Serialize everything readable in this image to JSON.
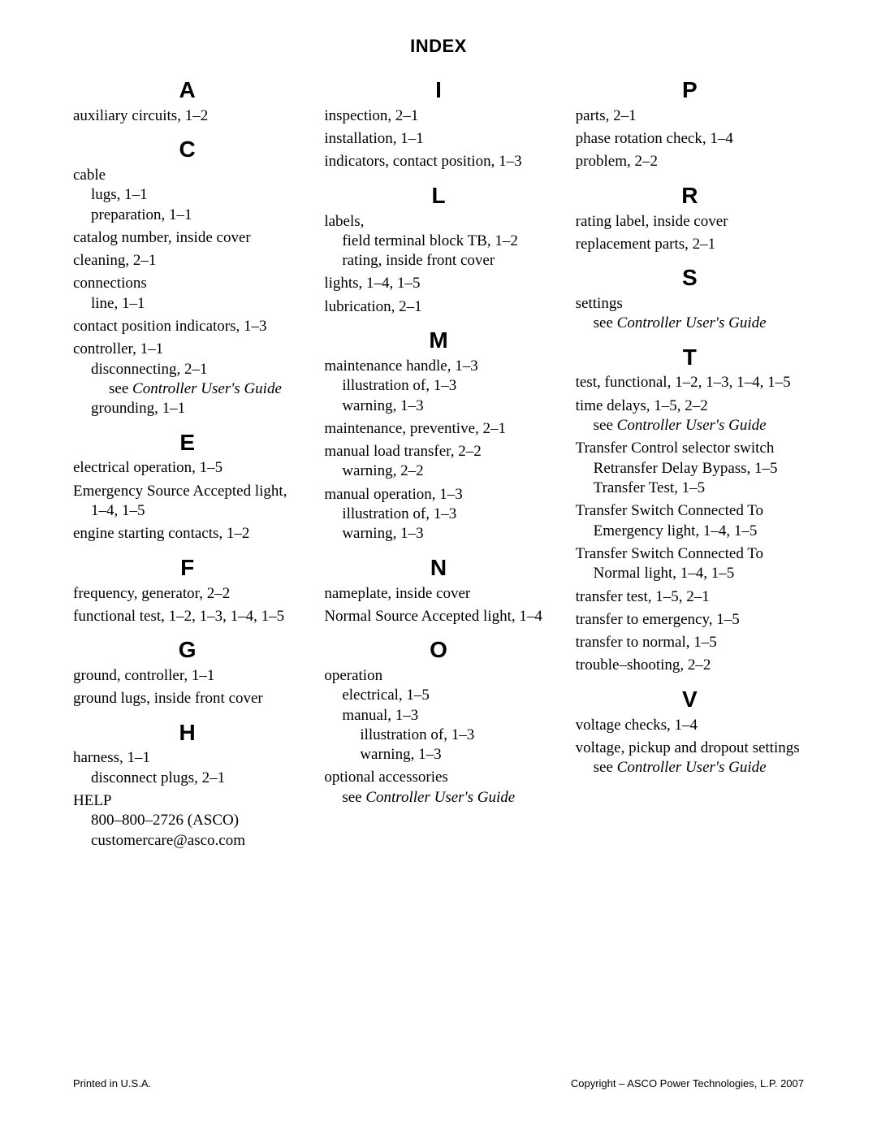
{
  "title": "INDEX",
  "footer_left": "Printed in U.S.A.",
  "footer_right": "Copyright – ASCO Power Technologies, L.P. 2007",
  "columns": [
    {
      "sections": [
        {
          "letter": "A",
          "entries": [
            {
              "lines": [
                {
                  "lvl": 0,
                  "text": "auxiliary circuits, 1–2"
                }
              ]
            }
          ]
        },
        {
          "letter": "C",
          "entries": [
            {
              "lines": [
                {
                  "lvl": 0,
                  "text": "cable"
                },
                {
                  "lvl": 1,
                  "text": "lugs, 1–1"
                },
                {
                  "lvl": 1,
                  "text": "preparation, 1–1"
                }
              ]
            },
            {
              "lines": [
                {
                  "lvl": 0,
                  "text": "catalog number, inside cover"
                }
              ]
            },
            {
              "lines": [
                {
                  "lvl": 0,
                  "text": "cleaning, 2–1"
                }
              ]
            },
            {
              "lines": [
                {
                  "lvl": 0,
                  "text": "connections"
                },
                {
                  "lvl": 1,
                  "text": "line, 1–1"
                }
              ]
            },
            {
              "lines": [
                {
                  "lvl": 0,
                  "text": "contact position indicators, 1–3"
                }
              ]
            },
            {
              "lines": [
                {
                  "lvl": 0,
                  "text": "controller, 1–1"
                },
                {
                  "lvl": 1,
                  "text": "disconnecting, 2–1"
                },
                {
                  "lvl": 2,
                  "text": "see ",
                  "see": "Controller User's Guide"
                },
                {
                  "lvl": 1,
                  "text": "grounding, 1–1"
                }
              ]
            }
          ]
        },
        {
          "letter": "E",
          "entries": [
            {
              "lines": [
                {
                  "lvl": 0,
                  "text": "electrical operation, 1–5"
                }
              ]
            },
            {
              "lines": [
                {
                  "lvl": 0,
                  "text": "Emergency Source Accepted light,"
                },
                {
                  "lvl": 1,
                  "text": "1–4, 1–5"
                }
              ]
            },
            {
              "lines": [
                {
                  "lvl": 0,
                  "text": "engine starting contacts, 1–2"
                }
              ]
            }
          ]
        },
        {
          "letter": "F",
          "entries": [
            {
              "lines": [
                {
                  "lvl": 0,
                  "text": "frequency, generator, 2–2"
                }
              ]
            },
            {
              "lines": [
                {
                  "lvl": 0,
                  "text": "functional test, 1–2, 1–3, 1–4, 1–5"
                }
              ]
            }
          ]
        },
        {
          "letter": "G",
          "entries": [
            {
              "lines": [
                {
                  "lvl": 0,
                  "text": "ground, controller, 1–1"
                }
              ]
            },
            {
              "lines": [
                {
                  "lvl": 0,
                  "text": "ground lugs, inside front cover"
                }
              ]
            }
          ]
        },
        {
          "letter": "H",
          "entries": [
            {
              "lines": [
                {
                  "lvl": 0,
                  "text": "harness, 1–1"
                },
                {
                  "lvl": 1,
                  "text": "disconnect plugs, 2–1"
                }
              ]
            },
            {
              "lines": [
                {
                  "lvl": 0,
                  "text": "HELP"
                },
                {
                  "lvl": 1,
                  "text": "800–800–2726 (ASCO)"
                },
                {
                  "lvl": 1,
                  "text": "customercare@asco.com"
                }
              ]
            }
          ]
        }
      ]
    },
    {
      "sections": [
        {
          "letter": "I",
          "entries": [
            {
              "lines": [
                {
                  "lvl": 0,
                  "text": "inspection, 2–1"
                }
              ]
            },
            {
              "lines": [
                {
                  "lvl": 0,
                  "text": "installation, 1–1"
                }
              ]
            },
            {
              "lines": [
                {
                  "lvl": 0,
                  "text": "indicators, contact position, 1–3"
                }
              ]
            }
          ]
        },
        {
          "letter": "L",
          "entries": [
            {
              "lines": [
                {
                  "lvl": 0,
                  "text": "labels,"
                },
                {
                  "lvl": 1,
                  "text": "field terminal block TB, 1–2"
                },
                {
                  "lvl": 1,
                  "text": "rating, inside front cover"
                }
              ]
            },
            {
              "lines": [
                {
                  "lvl": 0,
                  "text": "lights, 1–4, 1–5"
                }
              ]
            },
            {
              "lines": [
                {
                  "lvl": 0,
                  "text": "lubrication, 2–1"
                }
              ]
            }
          ]
        },
        {
          "letter": "M",
          "entries": [
            {
              "lines": [
                {
                  "lvl": 0,
                  "text": "maintenance handle, 1–3"
                },
                {
                  "lvl": 1,
                  "text": "illustration of, 1–3"
                },
                {
                  "lvl": 1,
                  "text": "warning, 1–3"
                }
              ]
            },
            {
              "lines": [
                {
                  "lvl": 0,
                  "text": "maintenance, preventive, 2–1"
                }
              ]
            },
            {
              "lines": [
                {
                  "lvl": 0,
                  "text": "manual load transfer, 2–2"
                },
                {
                  "lvl": 1,
                  "text": "warning, 2–2"
                }
              ]
            },
            {
              "lines": [
                {
                  "lvl": 0,
                  "text": "manual operation, 1–3"
                },
                {
                  "lvl": 1,
                  "text": "illustration of, 1–3"
                },
                {
                  "lvl": 1,
                  "text": "warning, 1–3"
                }
              ]
            }
          ]
        },
        {
          "letter": "N",
          "entries": [
            {
              "lines": [
                {
                  "lvl": 0,
                  "text": "nameplate, inside cover"
                }
              ]
            },
            {
              "lines": [
                {
                  "lvl": 0,
                  "text": "Normal Source Accepted light, 1–4"
                }
              ]
            }
          ]
        },
        {
          "letter": "O",
          "entries": [
            {
              "lines": [
                {
                  "lvl": 0,
                  "text": "operation"
                },
                {
                  "lvl": 1,
                  "text": "electrical, 1–5"
                },
                {
                  "lvl": 1,
                  "text": "manual, 1–3"
                },
                {
                  "lvl": 2,
                  "text": "illustration of, 1–3"
                },
                {
                  "lvl": 2,
                  "text": "warning, 1–3"
                }
              ]
            },
            {
              "lines": [
                {
                  "lvl": 0,
                  "text": "optional accessories"
                },
                {
                  "lvl": 1,
                  "text": "see ",
                  "see": "Controller User's Guide"
                }
              ]
            }
          ]
        }
      ]
    },
    {
      "sections": [
        {
          "letter": "P",
          "entries": [
            {
              "lines": [
                {
                  "lvl": 0,
                  "text": "parts, 2–1"
                }
              ]
            },
            {
              "lines": [
                {
                  "lvl": 0,
                  "text": "phase rotation check, 1–4"
                }
              ]
            },
            {
              "lines": [
                {
                  "lvl": 0,
                  "text": "problem, 2–2"
                }
              ]
            }
          ]
        },
        {
          "letter": "R",
          "entries": [
            {
              "lines": [
                {
                  "lvl": 0,
                  "text": "rating label, inside cover"
                }
              ]
            },
            {
              "lines": [
                {
                  "lvl": 0,
                  "text": "replacement parts, 2–1"
                }
              ]
            }
          ]
        },
        {
          "letter": "S",
          "entries": [
            {
              "lines": [
                {
                  "lvl": 0,
                  "text": "settings"
                },
                {
                  "lvl": 1,
                  "text": "see ",
                  "see": "Controller User's Guide"
                }
              ]
            }
          ]
        },
        {
          "letter": "T",
          "entries": [
            {
              "lines": [
                {
                  "lvl": 0,
                  "text": "test, functional, 1–2, 1–3, 1–4, 1–5"
                }
              ]
            },
            {
              "lines": [
                {
                  "lvl": 0,
                  "text": "time delays, 1–5, 2–2"
                },
                {
                  "lvl": 1,
                  "text": "see ",
                  "see": "Controller User's Guide"
                }
              ]
            },
            {
              "lines": [
                {
                  "lvl": 0,
                  "text": "Transfer Control selector switch"
                },
                {
                  "lvl": 1,
                  "text": "Retransfer Delay Bypass, 1–5"
                },
                {
                  "lvl": 1,
                  "text": "Transfer Test, 1–5"
                }
              ]
            },
            {
              "lines": [
                {
                  "lvl": 0,
                  "text": "Transfer Switch Connected To"
                },
                {
                  "lvl": 1,
                  "text": "Emergency light, 1–4,  1–5"
                }
              ]
            },
            {
              "lines": [
                {
                  "lvl": 0,
                  "text": "Transfer Switch Connected To"
                },
                {
                  "lvl": 1,
                  "text": "Normal light, 1–4, 1–5"
                }
              ]
            },
            {
              "lines": [
                {
                  "lvl": 0,
                  "text": "transfer test, 1–5, 2–1"
                }
              ]
            },
            {
              "lines": [
                {
                  "lvl": 0,
                  "text": "transfer to emergency, 1–5"
                }
              ]
            },
            {
              "lines": [
                {
                  "lvl": 0,
                  "text": "transfer to normal, 1–5"
                }
              ]
            },
            {
              "lines": [
                {
                  "lvl": 0,
                  "text": "trouble–shooting, 2–2"
                }
              ]
            }
          ]
        },
        {
          "letter": "V",
          "entries": [
            {
              "lines": [
                {
                  "lvl": 0,
                  "text": "voltage checks, 1–4"
                }
              ]
            },
            {
              "lines": [
                {
                  "lvl": 0,
                  "text": "voltage, pickup and dropout settings"
                },
                {
                  "lvl": 1,
                  "text": "see ",
                  "see": "Controller User's Guide"
                }
              ]
            }
          ]
        }
      ]
    }
  ]
}
